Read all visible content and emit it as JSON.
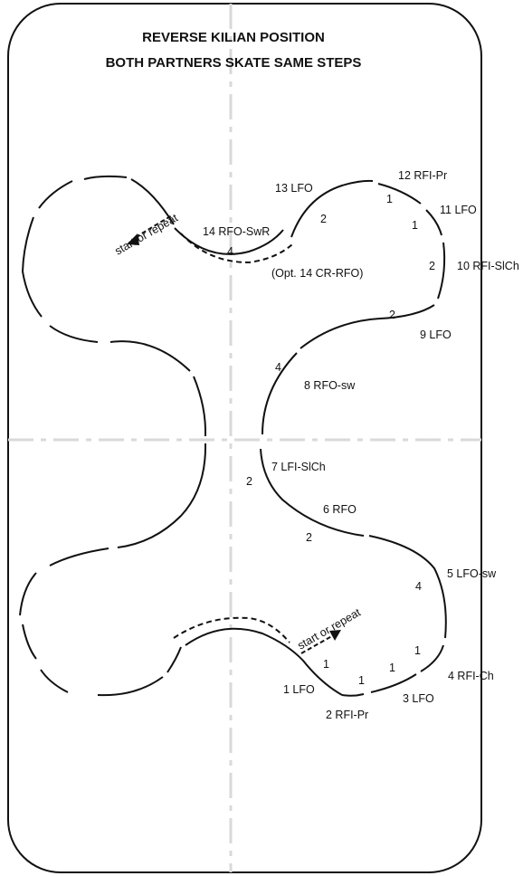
{
  "title": {
    "line1": "REVERSE KILIAN POSITION",
    "line2": "BOTH PARTNERS SKATE SAME STEPS"
  },
  "start_labels": {
    "top": "start or repeat",
    "bottom": "start or repeat"
  },
  "steps": {
    "s1": "1 LFO",
    "s2": "2 RFI-Pr",
    "s3": "3 LFO",
    "s4": "4 RFI-Ch",
    "s5": "5 LFO-sw",
    "s6": "6 RFO",
    "s7": "7 LFI-SlCh",
    "s8": "8 RFO-sw",
    "s9": "9 LFO",
    "s10": "10 RFI-SlCh",
    "s11": "11 LFO",
    "s12": "12 RFI-Pr",
    "s13": "13 LFO",
    "s14": "14 RFO-SwR",
    "opt14": "(Opt. 14 CR-RFO)"
  },
  "counts": {
    "c12": "1",
    "c11": "1",
    "c13": "2",
    "c10": "2",
    "c9": "2",
    "c14": "4",
    "c8": "4",
    "c7": "2",
    "c6": "2",
    "c5": "4",
    "c4": "1",
    "c3": "1",
    "c2": "1",
    "c1": "1"
  }
}
